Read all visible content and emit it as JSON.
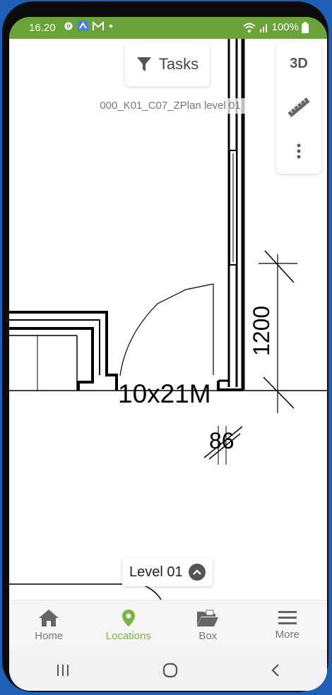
{
  "status_bar": {
    "time": "16.20",
    "battery": "100%",
    "background_color": "#6aa33a"
  },
  "toolbar": {
    "tasks_label": "Tasks",
    "view_3d_label": "3D"
  },
  "plan": {
    "name": "000_K01_C07_ZPlan level 01",
    "labels": {
      "door_size": "10x21M",
      "dim_vertical": "1200",
      "dim_small": "86"
    }
  },
  "level_selector": {
    "label": "Level 01"
  },
  "bottom_nav": {
    "accent_color": "#7cb342",
    "items": [
      {
        "label": "Home",
        "icon": "home-icon"
      },
      {
        "label": "Locations",
        "icon": "location-pin-icon",
        "active": true
      },
      {
        "label": "Box",
        "icon": "folder-icon"
      },
      {
        "label": "More",
        "icon": "menu-icon"
      }
    ]
  }
}
